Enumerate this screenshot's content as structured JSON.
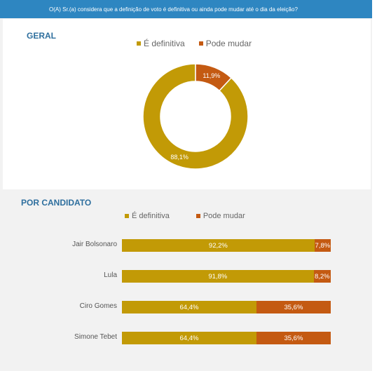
{
  "header": {
    "question": "O(A) Sr.(a) considera que a definição de voto é definitiva ou ainda pode mudar até o dia da eleição?"
  },
  "colors": {
    "definitiva": "#c29a06",
    "pode_mudar": "#c45a12",
    "accent": "#2e86c1"
  },
  "geral": {
    "title": "GERAL",
    "legend": [
      "É definitiva",
      "Pode mudar"
    ]
  },
  "por_candidato": {
    "title": "POR CANDIDATO",
    "legend": [
      "É definitiva",
      "Pode mudar"
    ]
  },
  "chart_data": [
    {
      "type": "pie",
      "title": "GERAL",
      "categories": [
        "É definitiva",
        "Pode mudar"
      ],
      "values": [
        88.1,
        11.9
      ],
      "labels": [
        "88,1%",
        "11,9%"
      ],
      "legend": "top"
    },
    {
      "type": "bar",
      "orientation": "horizontal",
      "stacked": true,
      "title": "POR CANDIDATO",
      "categories": [
        "Jair Bolsonaro",
        "Lula",
        "Ciro Gomes",
        "Simone Tebet"
      ],
      "series": [
        {
          "name": "É definitiva",
          "values": [
            92.2,
            91.8,
            64.4,
            64.4
          ],
          "labels": [
            "92,2%",
            "91,8%",
            "64,4%",
            "64,4%"
          ]
        },
        {
          "name": "Pode mudar",
          "values": [
            7.8,
            8.2,
            35.6,
            35.6
          ],
          "labels": [
            "7,8%",
            "8,2%",
            "35,6%",
            "35,6%"
          ]
        }
      ],
      "legend": "top"
    }
  ]
}
